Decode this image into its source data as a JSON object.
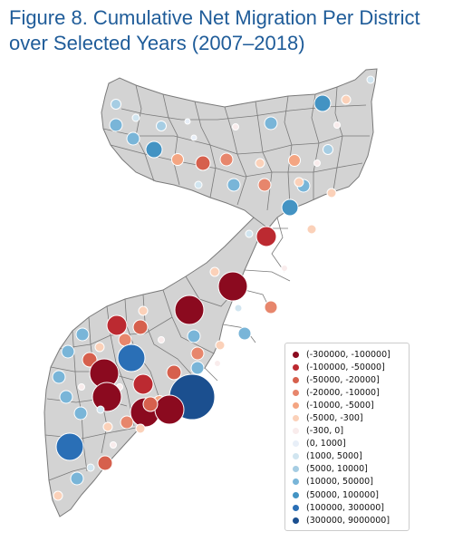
{
  "figure": {
    "title_line1": "Figure 8. Cumulative Net Migration Per District",
    "title_line2": "over Selected Years (2007–2018)"
  },
  "legend": {
    "items": [
      {
        "label": "(-300000, -100000]",
        "color": "#8b0a1f"
      },
      {
        "label": "(-100000, -50000]",
        "color": "#bc2a31"
      },
      {
        "label": "(-50000, -20000]",
        "color": "#d6604d"
      },
      {
        "label": "(-20000, -10000]",
        "color": "#e7866c"
      },
      {
        "label": "(-10000, -5000]",
        "color": "#f4a582"
      },
      {
        "label": "(-5000, -300]",
        "color": "#fbd1b9"
      },
      {
        "label": "(-300, 0]",
        "color": "#f9ecec"
      },
      {
        "label": "(0, 1000]",
        "color": "#e8eff8"
      },
      {
        "label": "(1000, 5000]",
        "color": "#d1e5f0"
      },
      {
        "label": "(5000, 10000]",
        "color": "#a6cde3"
      },
      {
        "label": "(10000, 50000]",
        "color": "#79b5d8"
      },
      {
        "label": "(50000, 100000]",
        "color": "#4393c3"
      },
      {
        "label": "(100000, 300000]",
        "color": "#2a6fb6"
      },
      {
        "label": "(300000, 9000000]",
        "color": "#1b4f8f"
      }
    ]
  },
  "map_style": {
    "land_color": "#d3d3d3",
    "border_color": "#7a7a7a",
    "marker_outline": "#ffffff"
  }
}
